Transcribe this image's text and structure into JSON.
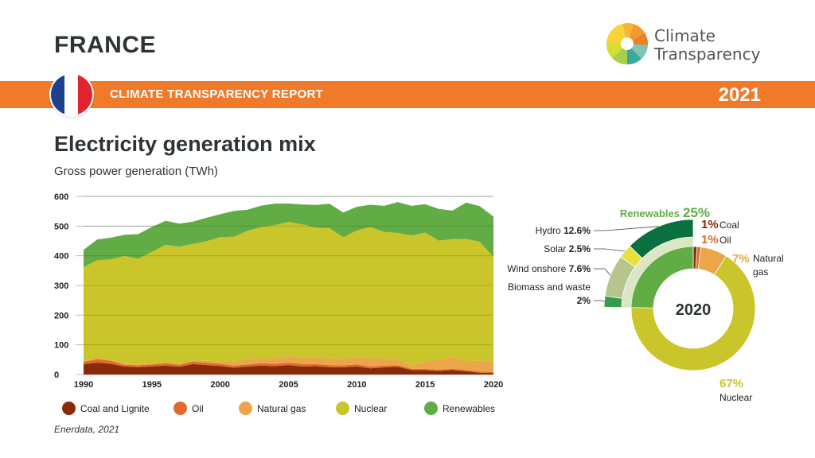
{
  "header": {
    "country": "FRANCE",
    "report_title": "CLIMATE TRANSPARENCY REPORT",
    "year": "2021",
    "logo_line1": "Climate",
    "logo_line2": "Transparency",
    "flag_colors": [
      "#1f3f8f",
      "#ffffff",
      "#e2242e"
    ]
  },
  "chart_title": "Electricity generation mix",
  "chart_subtitle": "Gross power generation (TWh)",
  "source": "Enerdata, 2021",
  "chart_data": [
    {
      "type": "area",
      "stacked": true,
      "x": [
        1990,
        1991,
        1992,
        1993,
        1994,
        1995,
        1996,
        1997,
        1998,
        1999,
        2000,
        2001,
        2002,
        2003,
        2004,
        2005,
        2006,
        2007,
        2008,
        2009,
        2010,
        2011,
        2012,
        2013,
        2014,
        2015,
        2016,
        2017,
        2018,
        2019,
        2020
      ],
      "series": [
        {
          "name": "Coal and Lignite",
          "color": "#8a2a0a",
          "values": [
            35,
            40,
            36,
            27,
            25,
            27,
            30,
            26,
            35,
            32,
            29,
            23,
            27,
            30,
            28,
            32,
            27,
            28,
            25,
            24,
            27,
            21,
            24,
            26,
            15,
            15,
            12,
            15,
            11,
            6,
            5
          ]
        },
        {
          "name": "Oil",
          "color": "#e06a2e",
          "values": [
            8,
            12,
            10,
            6,
            6,
            7,
            8,
            7,
            8,
            8,
            7,
            7,
            7,
            8,
            8,
            8,
            8,
            7,
            7,
            7,
            7,
            6,
            6,
            5,
            4,
            4,
            4,
            4,
            4,
            4,
            3
          ]
        },
        {
          "name": "Natural gas",
          "color": "#eba54a",
          "values": [
            1,
            3,
            3,
            3,
            3,
            3,
            3,
            4,
            5,
            6,
            9,
            12,
            16,
            18,
            19,
            22,
            22,
            22,
            22,
            22,
            25,
            28,
            25,
            20,
            12,
            23,
            34,
            40,
            29,
            38,
            35
          ]
        },
        {
          "name": "Nuclear",
          "color": "#c9c52a",
          "values": [
            318,
            330,
            339,
            364,
            356,
            376,
            396,
            394,
            392,
            403,
            418,
            422,
            434,
            441,
            448,
            452,
            449,
            438,
            439,
            409,
            426,
            442,
            425,
            426,
            437,
            436,
            401,
            397,
            413,
            399,
            354
          ]
        },
        {
          "name": "Renewables",
          "color": "#62ac45",
          "values": [
            58,
            70,
            73,
            71,
            83,
            84,
            81,
            77,
            75,
            79,
            77,
            87,
            71,
            72,
            73,
            62,
            67,
            76,
            82,
            84,
            80,
            75,
            88,
            104,
            100,
            96,
            107,
            96,
            122,
            120,
            135
          ]
        }
      ],
      "ylim": [
        0,
        600
      ],
      "yticks": [
        0,
        100,
        200,
        300,
        400,
        500,
        600
      ],
      "xticks": [
        1990,
        1995,
        2000,
        2005,
        2010,
        2015,
        2020
      ]
    },
    {
      "type": "pie",
      "center_label": "2020",
      "slices": [
        {
          "name": "Coal",
          "pct_label": "1%",
          "value": 1,
          "color": "#8a2a0a"
        },
        {
          "name": "Oil",
          "pct_label": "1%",
          "value": 1,
          "color": "#e06a2e"
        },
        {
          "name": "Natural gas",
          "pct_label": "7%",
          "value": 7,
          "color": "#eba54a"
        },
        {
          "name": "Nuclear",
          "pct_label": "67%",
          "value": 67,
          "color": "#c9c52a"
        },
        {
          "name": "Renewables",
          "pct_label": "25%",
          "value": 25,
          "color": "#62ac45"
        }
      ],
      "renewables_breakdown": [
        {
          "name": "Hydro",
          "pct_label": "12.6%",
          "value": 12.6,
          "color": "#0b7040"
        },
        {
          "name": "Solar",
          "pct_label": "2.5%",
          "value": 2.5,
          "color": "#e6e23a"
        },
        {
          "name": "Wind onshore",
          "pct_label": "7.6%",
          "value": 7.6,
          "color": "#b5c58d"
        },
        {
          "name": "Biomass and waste",
          "pct_label": "2%",
          "value": 2,
          "color": "#3a9a4c"
        }
      ]
    }
  ]
}
